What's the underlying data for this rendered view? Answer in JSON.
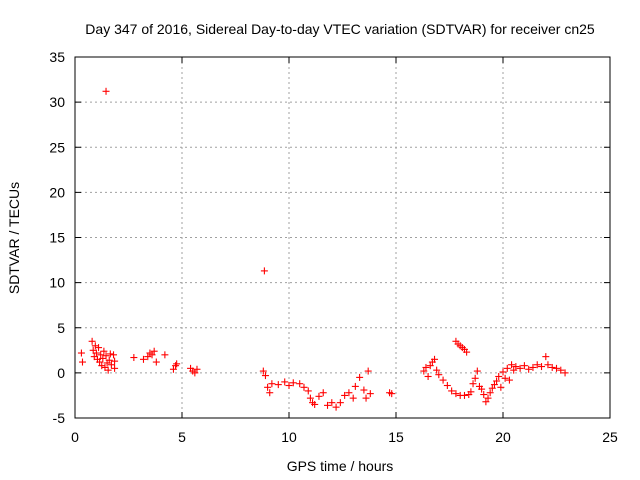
{
  "chart_data": {
    "type": "scatter",
    "title": "Day 347 of 2016, Sidereal Day-to-day VTEC variation (SDTVAR) for receiver cn25",
    "xlabel": "GPS time / hours",
    "ylabel": "SDTVAR / TECUs",
    "xlim": [
      0,
      25
    ],
    "ylim": [
      -5,
      35
    ],
    "x_ticks": [
      0,
      5,
      10,
      15,
      20,
      25
    ],
    "x_tick_labels": [
      "0",
      "5",
      "10",
      "15",
      "20",
      "25"
    ],
    "y_ticks": [
      -5,
      0,
      5,
      10,
      15,
      20,
      25,
      30,
      35
    ],
    "y_tick_labels": [
      "-5",
      "0",
      "5",
      "10",
      "15",
      "20",
      "25",
      "30",
      "35"
    ],
    "grid": true,
    "marker": "+",
    "color": "#ff0000",
    "series": [
      {
        "name": "SDTVAR",
        "points": [
          [
            1.45,
            31.2
          ],
          [
            8.85,
            11.3
          ],
          [
            0.3,
            2.2
          ],
          [
            0.35,
            1.2
          ],
          [
            0.8,
            3.5
          ],
          [
            0.85,
            2.5
          ],
          [
            0.9,
            1.8
          ],
          [
            0.95,
            3.0
          ],
          [
            1.0,
            2.2
          ],
          [
            1.05,
            1.5
          ],
          [
            1.1,
            2.8
          ],
          [
            1.15,
            1.2
          ],
          [
            1.2,
            2.0
          ],
          [
            1.25,
            0.8
          ],
          [
            1.3,
            1.6
          ],
          [
            1.35,
            2.4
          ],
          [
            1.4,
            0.6
          ],
          [
            1.45,
            1.9
          ],
          [
            1.5,
            1.1
          ],
          [
            1.55,
            0.3
          ],
          [
            1.6,
            1.4
          ],
          [
            1.65,
            2.1
          ],
          [
            1.7,
            0.9
          ],
          [
            1.8,
            2.0
          ],
          [
            1.85,
            0.5
          ],
          [
            1.85,
            1.3
          ],
          [
            2.75,
            1.7
          ],
          [
            3.2,
            1.5
          ],
          [
            3.4,
            1.8
          ],
          [
            3.5,
            2.2
          ],
          [
            3.6,
            2.0
          ],
          [
            3.7,
            2.4
          ],
          [
            3.8,
            1.2
          ],
          [
            4.2,
            2.0
          ],
          [
            4.6,
            0.4
          ],
          [
            4.7,
            0.8
          ],
          [
            4.75,
            1.0
          ],
          [
            5.4,
            0.5
          ],
          [
            5.5,
            0.2
          ],
          [
            5.6,
            0.0
          ],
          [
            5.7,
            0.4
          ],
          [
            8.8,
            0.2
          ],
          [
            8.9,
            -0.3
          ],
          [
            9.0,
            -1.6
          ],
          [
            9.1,
            -2.2
          ],
          [
            9.2,
            -1.2
          ],
          [
            9.5,
            -1.3
          ],
          [
            9.8,
            -1.0
          ],
          [
            10.0,
            -1.4
          ],
          [
            10.2,
            -1.1
          ],
          [
            10.5,
            -1.2
          ],
          [
            10.7,
            -1.6
          ],
          [
            10.9,
            -2.0
          ],
          [
            11.0,
            -2.8
          ],
          [
            11.1,
            -3.3
          ],
          [
            11.2,
            -3.5
          ],
          [
            11.4,
            -2.6
          ],
          [
            11.6,
            -2.2
          ],
          [
            11.8,
            -3.6
          ],
          [
            12.0,
            -3.3
          ],
          [
            12.2,
            -3.8
          ],
          [
            12.4,
            -3.3
          ],
          [
            12.6,
            -2.5
          ],
          [
            12.8,
            -2.2
          ],
          [
            13.0,
            -2.8
          ],
          [
            13.1,
            -1.5
          ],
          [
            13.3,
            -0.5
          ],
          [
            13.5,
            -1.9
          ],
          [
            13.6,
            -2.8
          ],
          [
            13.7,
            0.2
          ],
          [
            13.8,
            -2.3
          ],
          [
            14.7,
            -2.2
          ],
          [
            14.8,
            -2.3
          ],
          [
            16.3,
            0.2
          ],
          [
            16.4,
            0.6
          ],
          [
            16.5,
            -0.4
          ],
          [
            16.6,
            0.8
          ],
          [
            16.7,
            1.2
          ],
          [
            16.8,
            1.5
          ],
          [
            16.9,
            0.3
          ],
          [
            17.0,
            -0.2
          ],
          [
            17.2,
            -0.8
          ],
          [
            17.4,
            -1.4
          ],
          [
            17.6,
            -2.0
          ],
          [
            17.8,
            -2.3
          ],
          [
            18.0,
            -2.5
          ],
          [
            18.2,
            -2.5
          ],
          [
            18.4,
            -2.4
          ],
          [
            18.5,
            -2.1
          ],
          [
            18.6,
            -1.2
          ],
          [
            18.7,
            -0.6
          ],
          [
            18.8,
            0.2
          ],
          [
            18.9,
            -1.5
          ],
          [
            19.0,
            -1.8
          ],
          [
            19.1,
            -2.4
          ],
          [
            19.2,
            -3.2
          ],
          [
            19.3,
            -2.8
          ],
          [
            19.4,
            -2.2
          ],
          [
            19.5,
            -1.7
          ],
          [
            19.6,
            -1.3
          ],
          [
            19.7,
            -0.9
          ],
          [
            19.8,
            -0.4
          ],
          [
            19.9,
            -1.6
          ],
          [
            20.0,
            0.1
          ],
          [
            20.1,
            -0.6
          ],
          [
            20.2,
            0.5
          ],
          [
            20.3,
            -0.8
          ],
          [
            20.4,
            0.9
          ],
          [
            20.5,
            0.3
          ],
          [
            20.6,
            0.7
          ],
          [
            20.8,
            0.5
          ],
          [
            21.0,
            0.8
          ],
          [
            21.2,
            0.4
          ],
          [
            21.4,
            0.6
          ],
          [
            21.6,
            0.9
          ],
          [
            21.8,
            0.7
          ],
          [
            22.0,
            1.8
          ],
          [
            22.1,
            0.9
          ],
          [
            22.3,
            0.6
          ],
          [
            22.5,
            0.5
          ],
          [
            22.7,
            0.3
          ],
          [
            22.9,
            0.0
          ],
          [
            17.8,
            3.5
          ],
          [
            17.9,
            3.2
          ],
          [
            18.0,
            3.0
          ],
          [
            18.1,
            2.8
          ],
          [
            18.2,
            2.6
          ],
          [
            18.3,
            2.3
          ]
        ]
      }
    ]
  }
}
